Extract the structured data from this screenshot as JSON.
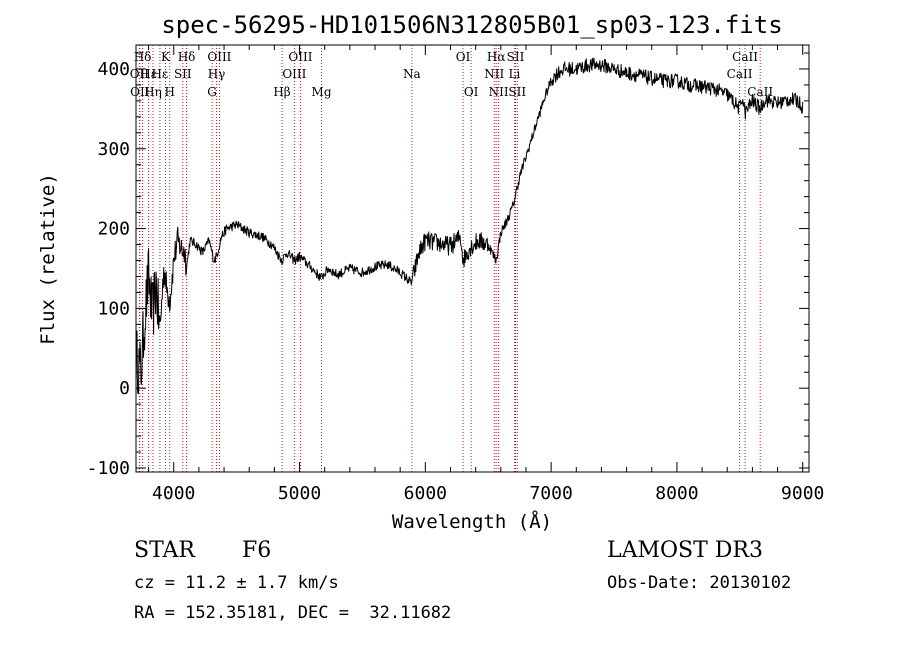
{
  "chart_data": {
    "type": "line",
    "title": "spec-56295-HD101506N312805B01_sp03-123.fits",
    "xlabel": "Wavelength (Å)",
    "ylabel": "Flux (relative)",
    "xlim": [
      3700,
      9050
    ],
    "ylim": [
      -105,
      430
    ],
    "xticks": [
      4000,
      5000,
      6000,
      7000,
      8000,
      9000
    ],
    "yticks": [
      -100,
      0,
      100,
      200,
      300,
      400
    ],
    "line_color": "#000000",
    "marker_color": "#b22222",
    "anchors": [
      [
        3700,
        40
      ],
      [
        3740,
        20
      ],
      [
        3770,
        90
      ],
      [
        3800,
        140
      ],
      [
        3830,
        90
      ],
      [
        3860,
        130
      ],
      [
        3890,
        70
      ],
      [
        3920,
        150
      ],
      [
        3950,
        120
      ],
      [
        3970,
        110
      ],
      [
        4000,
        160
      ],
      [
        4030,
        185
      ],
      [
        4060,
        175
      ],
      [
        4090,
        170
      ],
      [
        4100,
        150
      ],
      [
        4130,
        185
      ],
      [
        4180,
        180
      ],
      [
        4230,
        170
      ],
      [
        4280,
        185
      ],
      [
        4320,
        160
      ],
      [
        4340,
        165
      ],
      [
        4380,
        190
      ],
      [
        4420,
        200
      ],
      [
        4500,
        205
      ],
      [
        4600,
        195
      ],
      [
        4700,
        190
      ],
      [
        4780,
        180
      ],
      [
        4860,
        160
      ],
      [
        4900,
        170
      ],
      [
        4960,
        160
      ],
      [
        5000,
        165
      ],
      [
        5100,
        150
      ],
      [
        5170,
        138
      ],
      [
        5230,
        150
      ],
      [
        5300,
        142
      ],
      [
        5400,
        150
      ],
      [
        5500,
        145
      ],
      [
        5600,
        152
      ],
      [
        5700,
        155
      ],
      [
        5800,
        145
      ],
      [
        5890,
        132
      ],
      [
        5950,
        170
      ],
      [
        6000,
        185
      ],
      [
        6100,
        182
      ],
      [
        6200,
        178
      ],
      [
        6280,
        190
      ],
      [
        6300,
        160
      ],
      [
        6350,
        175
      ],
      [
        6420,
        185
      ],
      [
        6500,
        180
      ],
      [
        6563,
        160
      ],
      [
        6600,
        195
      ],
      [
        6650,
        210
      ],
      [
        6700,
        230
      ],
      [
        6750,
        265
      ],
      [
        6800,
        290
      ],
      [
        6850,
        315
      ],
      [
        6900,
        340
      ],
      [
        6950,
        365
      ],
      [
        7000,
        385
      ],
      [
        7050,
        395
      ],
      [
        7100,
        400
      ],
      [
        7200,
        400
      ],
      [
        7300,
        405
      ],
      [
        7400,
        405
      ],
      [
        7500,
        400
      ],
      [
        7600,
        395
      ],
      [
        7700,
        392
      ],
      [
        7800,
        388
      ],
      [
        7900,
        385
      ],
      [
        8000,
        385
      ],
      [
        8100,
        380
      ],
      [
        8200,
        378
      ],
      [
        8300,
        375
      ],
      [
        8400,
        368
      ],
      [
        8498,
        350
      ],
      [
        8520,
        365
      ],
      [
        8542,
        345
      ],
      [
        8600,
        360
      ],
      [
        8662,
        350
      ],
      [
        8700,
        362
      ],
      [
        8800,
        357
      ],
      [
        8900,
        362
      ],
      [
        8960,
        360
      ],
      [
        9000,
        352
      ]
    ],
    "lines": [
      {
        "label": "Hδ",
        "x": 3752,
        "row": 0
      },
      {
        "label": "OII",
        "x": 3727,
        "row": 1
      },
      {
        "label": "OII",
        "x": 3730,
        "row": 2
      },
      {
        "label": "Hε",
        "x": 3800,
        "row": 1
      },
      {
        "label": "Hη",
        "x": 3835,
        "row": 2
      },
      {
        "label": "K",
        "x": 3934,
        "row": 0
      },
      {
        "label": "H",
        "x": 3968,
        "row": 2
      },
      {
        "label": "Hε",
        "x": 3890,
        "row": 1
      },
      {
        "label": "Hδ",
        "x": 4102,
        "row": 0
      },
      {
        "label": "SII",
        "x": 4072,
        "row": 1
      },
      {
        "label": "OIII",
        "x": 4363,
        "row": 0
      },
      {
        "label": "Hγ",
        "x": 4340,
        "row": 1
      },
      {
        "label": "G",
        "x": 4305,
        "row": 2
      },
      {
        "label": "OIII",
        "x": 5007,
        "row": 0
      },
      {
        "label": "OIII",
        "x": 4959,
        "row": 1
      },
      {
        "label": "Hβ",
        "x": 4861,
        "row": 2
      },
      {
        "label": "Mg",
        "x": 5175,
        "row": 2
      },
      {
        "label": "Na",
        "x": 5893,
        "row": 1
      },
      {
        "label": "OI",
        "x": 6300,
        "row": 0
      },
      {
        "label": "OI",
        "x": 6364,
        "row": 2
      },
      {
        "label": "Hα",
        "x": 6563,
        "row": 0
      },
      {
        "label": "NII",
        "x": 6548,
        "row": 1
      },
      {
        "label": "NII",
        "x": 6583,
        "row": 2
      },
      {
        "label": "SII",
        "x": 6717,
        "row": 0
      },
      {
        "label": "Li",
        "x": 6708,
        "row": 1
      },
      {
        "label": "SII",
        "x": 6731,
        "row": 2
      },
      {
        "label": "CaII",
        "x": 8542,
        "row": 0
      },
      {
        "label": "CaII",
        "x": 8498,
        "row": 1
      },
      {
        "label": "CaII",
        "x": 8662,
        "row": 2
      }
    ]
  },
  "info": {
    "object_class": "STAR",
    "subclass": "F6",
    "redshift": "cz = 11.2 ± 1.7 km/s",
    "coords": "RA = 152.35181, DEC =  32.11682",
    "survey": "LAMOST DR3",
    "obs_date": "Obs-Date: 20130102"
  }
}
